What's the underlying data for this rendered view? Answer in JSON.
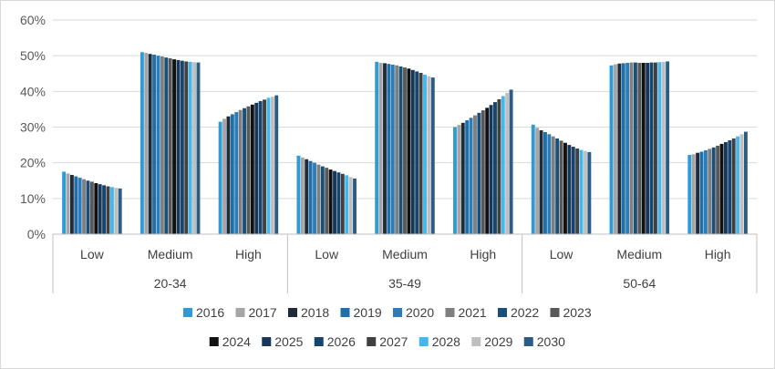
{
  "chart_data": {
    "type": "bar",
    "title": "",
    "xlabel": "",
    "ylabel": "",
    "ylim": [
      0,
      60
    ],
    "yticks": [
      "0%",
      "10%",
      "20%",
      "30%",
      "40%",
      "50%",
      "60%"
    ],
    "grid": true,
    "legend_position": "bottom",
    "groups": [
      {
        "label": "20-34",
        "categories": [
          "Low",
          "Medium",
          "High"
        ]
      },
      {
        "label": "35-49",
        "categories": [
          "Low",
          "Medium",
          "High"
        ]
      },
      {
        "label": "50-64",
        "categories": [
          "Low",
          "Medium",
          "High"
        ]
      }
    ],
    "categories": [
      "20-34 Low",
      "20-34 Medium",
      "20-34 High",
      "35-49 Low",
      "35-49 Medium",
      "35-49 High",
      "50-64 Low",
      "50-64 Medium",
      "50-64 High"
    ],
    "series": [
      {
        "name": "2016",
        "color": "#2e9bd6",
        "values": [
          17.5,
          51.0,
          31.5,
          22.0,
          48.3,
          30.0,
          30.7,
          47.3,
          22.2
        ]
      },
      {
        "name": "2017",
        "color": "#a5a5a5",
        "values": [
          17.0,
          50.8,
          32.3,
          21.5,
          48.0,
          30.6,
          29.8,
          47.6,
          22.4
        ]
      },
      {
        "name": "2018",
        "color": "#1f2b38",
        "values": [
          16.6,
          50.5,
          33.0,
          21.0,
          47.9,
          31.2,
          29.1,
          47.8,
          22.8
        ]
      },
      {
        "name": "2019",
        "color": "#1f6fa8",
        "values": [
          16.2,
          50.3,
          33.6,
          20.5,
          47.7,
          31.9,
          28.6,
          47.9,
          23.1
        ]
      },
      {
        "name": "2020",
        "color": "#2b7cb8",
        "values": [
          15.8,
          50.0,
          34.2,
          20.0,
          47.5,
          32.6,
          28.0,
          48.0,
          23.5
        ]
      },
      {
        "name": "2021",
        "color": "#7f7f7f",
        "values": [
          15.4,
          49.8,
          34.8,
          19.5,
          47.3,
          33.3,
          27.4,
          48.1,
          23.9
        ]
      },
      {
        "name": "2022",
        "color": "#1a4f78",
        "values": [
          15.0,
          49.5,
          35.3,
          19.0,
          47.0,
          34.0,
          26.8,
          48.1,
          24.3
        ]
      },
      {
        "name": "2023",
        "color": "#595959",
        "values": [
          14.7,
          49.3,
          35.8,
          18.6,
          46.7,
          34.7,
          26.2,
          48.0,
          24.8
        ]
      },
      {
        "name": "2024",
        "color": "#111111",
        "values": [
          14.3,
          49.0,
          36.3,
          18.1,
          46.4,
          35.4,
          25.6,
          48.0,
          25.3
        ]
      },
      {
        "name": "2025",
        "color": "#16385a",
        "values": [
          14.0,
          48.8,
          36.8,
          17.7,
          46.0,
          36.2,
          25.0,
          48.0,
          25.8
        ]
      },
      {
        "name": "2026",
        "color": "#17456e",
        "values": [
          13.7,
          48.6,
          37.3,
          17.3,
          45.6,
          37.0,
          24.5,
          48.1,
          26.3
        ]
      },
      {
        "name": "2027",
        "color": "#404040",
        "values": [
          13.4,
          48.4,
          37.7,
          16.9,
          45.2,
          37.8,
          24.0,
          48.1,
          26.8
        ]
      },
      {
        "name": "2028",
        "color": "#45b7ea",
        "values": [
          13.2,
          48.3,
          38.2,
          16.5,
          44.7,
          38.7,
          23.6,
          48.2,
          27.4
        ]
      },
      {
        "name": "2029",
        "color": "#bfbfbf",
        "values": [
          13.0,
          48.2,
          38.5,
          16.0,
          44.3,
          39.6,
          23.3,
          48.3,
          28.0
        ]
      },
      {
        "name": "2030",
        "color": "#2a5c86",
        "values": [
          12.8,
          48.1,
          38.9,
          15.6,
          43.9,
          40.5,
          23.0,
          48.4,
          28.7
        ]
      }
    ]
  }
}
